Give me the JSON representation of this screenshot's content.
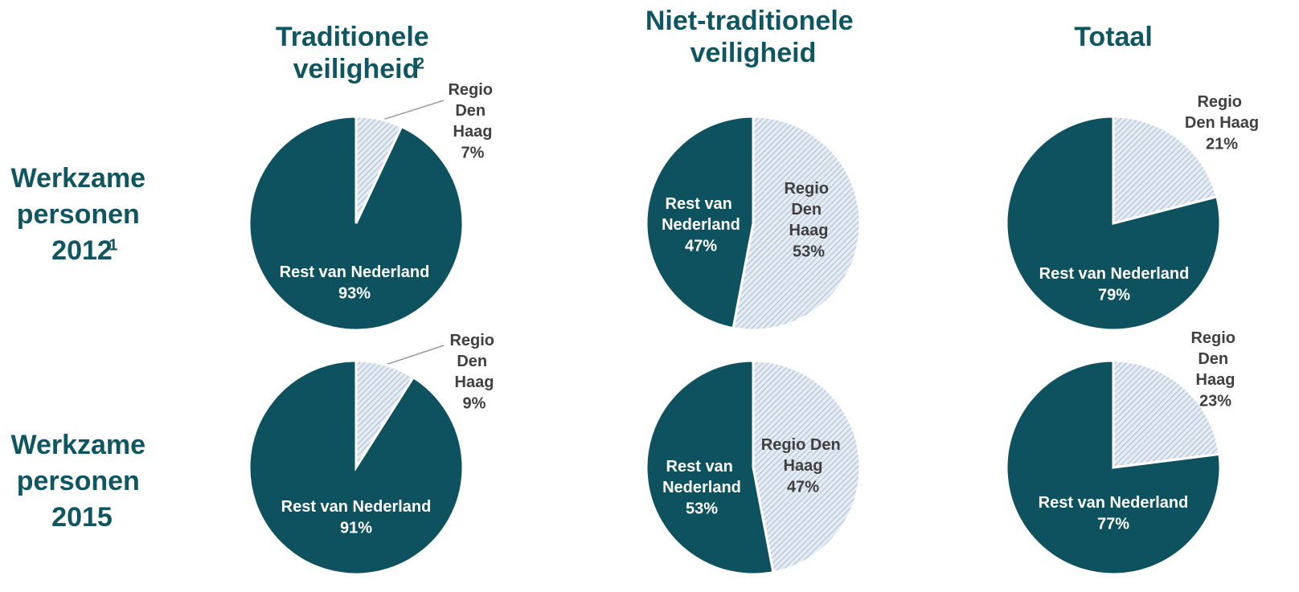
{
  "columns": [
    {
      "text": "Traditionele veiligheid",
      "footnote": "2"
    },
    {
      "text": "Niet-traditionele veiligheid"
    },
    {
      "text": "Totaal"
    }
  ],
  "rows": [
    {
      "text": "Werkzame personen 2012",
      "footnote": "1"
    },
    {
      "text": "Werkzame personen 2015"
    }
  ],
  "chart_data": [
    {
      "type": "pie",
      "categories": [
        "Regio Den Haag",
        "Rest van Nederland"
      ],
      "values": [
        7,
        93
      ],
      "value_labels": [
        "7%",
        "93%"
      ],
      "colors": [
        "#d7e2ee",
        "#0d525e"
      ]
    },
    {
      "type": "pie",
      "categories": [
        "Regio Den Haag",
        "Rest van Nederland"
      ],
      "values": [
        53,
        47
      ],
      "value_labels": [
        "53%",
        "47%"
      ],
      "colors": [
        "#d7e2ee",
        "#0d525e"
      ]
    },
    {
      "type": "pie",
      "categories": [
        "Regio Den Haag",
        "Rest van Nederland"
      ],
      "values": [
        21,
        79
      ],
      "value_labels": [
        "21%",
        "79%"
      ],
      "colors": [
        "#d7e2ee",
        "#0d525e"
      ]
    },
    {
      "type": "pie",
      "categories": [
        "Regio Den Haag",
        "Rest van Nederland"
      ],
      "values": [
        9,
        91
      ],
      "value_labels": [
        "9%",
        "91%"
      ],
      "colors": [
        "#d7e2ee",
        "#0d525e"
      ]
    },
    {
      "type": "pie",
      "categories": [
        "Regio Den Haag",
        "Rest van Nederland"
      ],
      "values": [
        47,
        53
      ],
      "value_labels": [
        "47%",
        "53%"
      ],
      "colors": [
        "#d7e2ee",
        "#0d525e"
      ]
    },
    {
      "type": "pie",
      "categories": [
        "Regio Den Haag",
        "Rest van Nederland"
      ],
      "values": [
        23,
        77
      ],
      "value_labels": [
        "23%",
        "77%"
      ],
      "colors": [
        "#d7e2ee",
        "#0d525e"
      ]
    }
  ]
}
